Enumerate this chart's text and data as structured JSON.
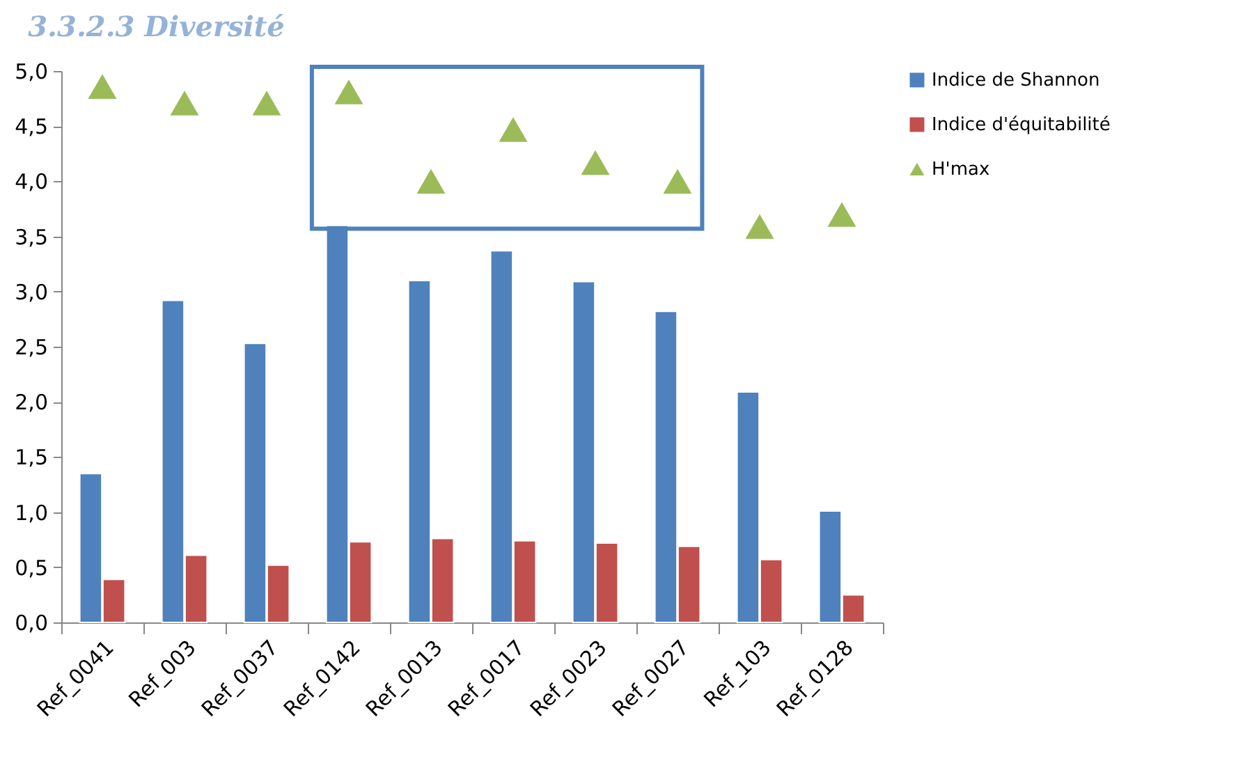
{
  "chart_data": {
    "type": "bar",
    "title": "3.3.2.3    Diversité",
    "categories": [
      "Ref_0041",
      "Ref_003",
      "Ref_0037",
      "Ref_0142",
      "Ref_0013",
      "Ref_0017",
      "Ref_0023",
      "Ref_0027",
      "Ref_103",
      "Ref_0128"
    ],
    "series": [
      {
        "name": "Indice de Shannon",
        "color": "#4f81bd",
        "values": [
          1.35,
          2.92,
          2.53,
          3.6,
          3.1,
          3.37,
          3.09,
          2.82,
          2.09,
          1.01
        ]
      },
      {
        "name": "Indice d'équitabilité",
        "color": "#c0504d",
        "values": [
          0.39,
          0.61,
          0.52,
          0.73,
          0.76,
          0.74,
          0.72,
          0.69,
          0.57,
          0.25
        ]
      },
      {
        "name": "H'max",
        "type": "scatter",
        "marker": "triangle",
        "color": "#9bbb59",
        "values": [
          4.86,
          4.71,
          4.71,
          4.81,
          4.0,
          4.47,
          4.17,
          4.0,
          3.59,
          3.7
        ]
      }
    ],
    "ylim": [
      0,
      5
    ],
    "yticks": [
      {
        "value": 0,
        "label": "0,0"
      },
      {
        "value": 0.5,
        "label": "0,5"
      },
      {
        "value": 1,
        "label": "1,0"
      },
      {
        "value": 1.5,
        "label": "1,5"
      },
      {
        "value": 2,
        "label": "2,0"
      },
      {
        "value": 2.5,
        "label": "2,5"
      },
      {
        "value": 3,
        "label": "3,0"
      },
      {
        "value": 3.5,
        "label": "3,5"
      },
      {
        "value": 4,
        "label": "4,0"
      },
      {
        "value": 4.5,
        "label": "4,5"
      },
      {
        "value": 5,
        "label": "5,0"
      }
    ],
    "grid": false,
    "legend": "right"
  }
}
